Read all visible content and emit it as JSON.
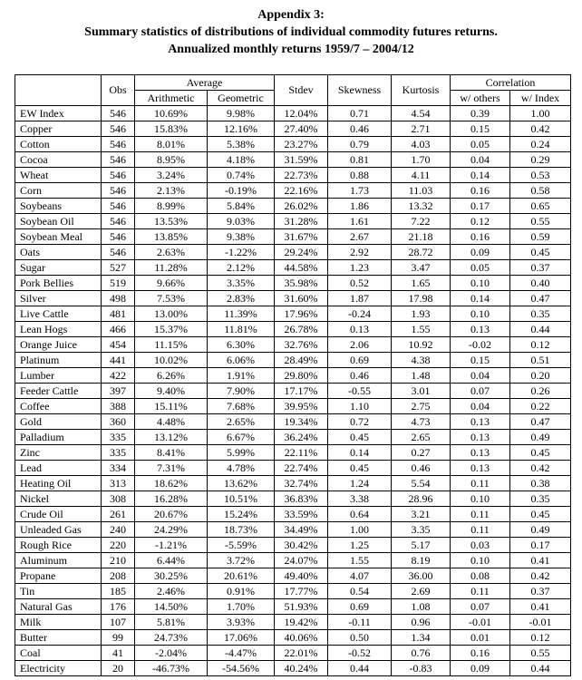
{
  "title": {
    "line1": "Appendix 3:",
    "line2": "Summary statistics of distributions of individual commodity futures returns.",
    "line3": "Annualized monthly returns 1959/7 – 2004/12"
  },
  "colors": {
    "background": "#ffffff",
    "text": "#000000",
    "table_border": "#000000"
  },
  "table": {
    "headers": {
      "commodity": "",
      "obs": "Obs",
      "average": "Average",
      "arithmetic": "Arithmetic",
      "geometric": "Geometric",
      "stdev": "Stdev",
      "skewness": "Skewness",
      "kurtosis": "Kurtosis",
      "correlation": "Correlation",
      "w_others": "w/ others",
      "w_index": "w/ Index"
    },
    "rows": [
      [
        "EW Index",
        "546",
        "10.69%",
        "9.98%",
        "12.04%",
        "0.71",
        "4.54",
        "0.39",
        "1.00"
      ],
      [
        "Copper",
        "546",
        "15.83%",
        "12.16%",
        "27.40%",
        "0.46",
        "2.71",
        "0.15",
        "0.42"
      ],
      [
        "Cotton",
        "546",
        "8.01%",
        "5.38%",
        "23.27%",
        "0.79",
        "4.03",
        "0.05",
        "0.24"
      ],
      [
        "Cocoa",
        "546",
        "8.95%",
        "4.18%",
        "31.59%",
        "0.81",
        "1.70",
        "0.04",
        "0.29"
      ],
      [
        "Wheat",
        "546",
        "3.24%",
        "0.74%",
        "22.73%",
        "0.88",
        "4.11",
        "0.14",
        "0.53"
      ],
      [
        "Corn",
        "546",
        "2.13%",
        "-0.19%",
        "22.16%",
        "1.73",
        "11.03",
        "0.16",
        "0.58"
      ],
      [
        "Soybeans",
        "546",
        "8.99%",
        "5.84%",
        "26.02%",
        "1.86",
        "13.32",
        "0.17",
        "0.65"
      ],
      [
        "Soybean Oil",
        "546",
        "13.53%",
        "9.03%",
        "31.28%",
        "1.61",
        "7.22",
        "0.12",
        "0.55"
      ],
      [
        "Soybean Meal",
        "546",
        "13.85%",
        "9.38%",
        "31.67%",
        "2.67",
        "21.18",
        "0.16",
        "0.59"
      ],
      [
        "Oats",
        "546",
        "2.63%",
        "-1.22%",
        "29.24%",
        "2.92",
        "28.72",
        "0.09",
        "0.45"
      ],
      [
        "Sugar",
        "527",
        "11.28%",
        "2.12%",
        "44.58%",
        "1.23",
        "3.47",
        "0.05",
        "0.37"
      ],
      [
        "Pork Bellies",
        "519",
        "9.66%",
        "3.35%",
        "35.98%",
        "0.52",
        "1.65",
        "0.10",
        "0.40"
      ],
      [
        "Silver",
        "498",
        "7.53%",
        "2.83%",
        "31.60%",
        "1.87",
        "17.98",
        "0.14",
        "0.47"
      ],
      [
        "Live Cattle",
        "481",
        "13.00%",
        "11.39%",
        "17.96%",
        "-0.24",
        "1.93",
        "0.10",
        "0.35"
      ],
      [
        "Lean Hogs",
        "466",
        "15.37%",
        "11.81%",
        "26.78%",
        "0.13",
        "1.55",
        "0.13",
        "0.44"
      ],
      [
        "Orange Juice",
        "454",
        "11.15%",
        "6.30%",
        "32.76%",
        "2.06",
        "10.92",
        "-0.02",
        "0.12"
      ],
      [
        "Platinum",
        "441",
        "10.02%",
        "6.06%",
        "28.49%",
        "0.69",
        "4.38",
        "0.15",
        "0.51"
      ],
      [
        "Lumber",
        "422",
        "6.26%",
        "1.91%",
        "29.80%",
        "0.46",
        "1.48",
        "0.04",
        "0.20"
      ],
      [
        "Feeder Cattle",
        "397",
        "9.40%",
        "7.90%",
        "17.17%",
        "-0.55",
        "3.01",
        "0.07",
        "0.26"
      ],
      [
        "Coffee",
        "388",
        "15.11%",
        "7.68%",
        "39.95%",
        "1.10",
        "2.75",
        "0.04",
        "0.22"
      ],
      [
        "Gold",
        "360",
        "4.48%",
        "2.65%",
        "19.34%",
        "0.72",
        "4.73",
        "0.13",
        "0.47"
      ],
      [
        "Palladium",
        "335",
        "13.12%",
        "6.67%",
        "36.24%",
        "0.45",
        "2.65",
        "0.13",
        "0.49"
      ],
      [
        "Zinc",
        "335",
        "8.41%",
        "5.99%",
        "22.11%",
        "0.14",
        "0.27",
        "0.13",
        "0.45"
      ],
      [
        "Lead",
        "334",
        "7.31%",
        "4.78%",
        "22.74%",
        "0.45",
        "0.46",
        "0.13",
        "0.42"
      ],
      [
        "Heating Oil",
        "313",
        "18.62%",
        "13.62%",
        "32.74%",
        "1.24",
        "5.54",
        "0.11",
        "0.38"
      ],
      [
        "Nickel",
        "308",
        "16.28%",
        "10.51%",
        "36.83%",
        "3.38",
        "28.96",
        "0.10",
        "0.35"
      ],
      [
        "Crude Oil",
        "261",
        "20.67%",
        "15.24%",
        "33.59%",
        "0.64",
        "3.21",
        "0.11",
        "0.45"
      ],
      [
        "Unleaded Gas",
        "240",
        "24.29%",
        "18.73%",
        "34.49%",
        "1.00",
        "3.35",
        "0.11",
        "0.49"
      ],
      [
        "Rough Rice",
        "220",
        "-1.21%",
        "-5.59%",
        "30.42%",
        "1.25",
        "5.17",
        "0.03",
        "0.17"
      ],
      [
        "Aluminum",
        "210",
        "6.44%",
        "3.72%",
        "24.07%",
        "1.55",
        "8.19",
        "0.10",
        "0.41"
      ],
      [
        "Propane",
        "208",
        "30.25%",
        "20.61%",
        "49.40%",
        "4.07",
        "36.00",
        "0.08",
        "0.42"
      ],
      [
        "Tin",
        "185",
        "2.46%",
        "0.91%",
        "17.77%",
        "0.54",
        "2.69",
        "0.11",
        "0.37"
      ],
      [
        "Natural Gas",
        "176",
        "14.50%",
        "1.70%",
        "51.93%",
        "0.69",
        "1.08",
        "0.07",
        "0.41"
      ],
      [
        "Milk",
        "107",
        "5.81%",
        "3.93%",
        "19.42%",
        "-0.11",
        "0.96",
        "-0.01",
        "-0.01"
      ],
      [
        "Butter",
        "99",
        "24.73%",
        "17.06%",
        "40.06%",
        "0.50",
        "1.34",
        "0.01",
        "0.12"
      ],
      [
        "Coal",
        "41",
        "-2.04%",
        "-4.47%",
        "22.01%",
        "-0.52",
        "0.76",
        "0.16",
        "0.55"
      ],
      [
        "Electricity",
        "20",
        "-46.73%",
        "-54.56%",
        "40.24%",
        "0.44",
        "-0.83",
        "0.09",
        "0.44"
      ]
    ]
  }
}
